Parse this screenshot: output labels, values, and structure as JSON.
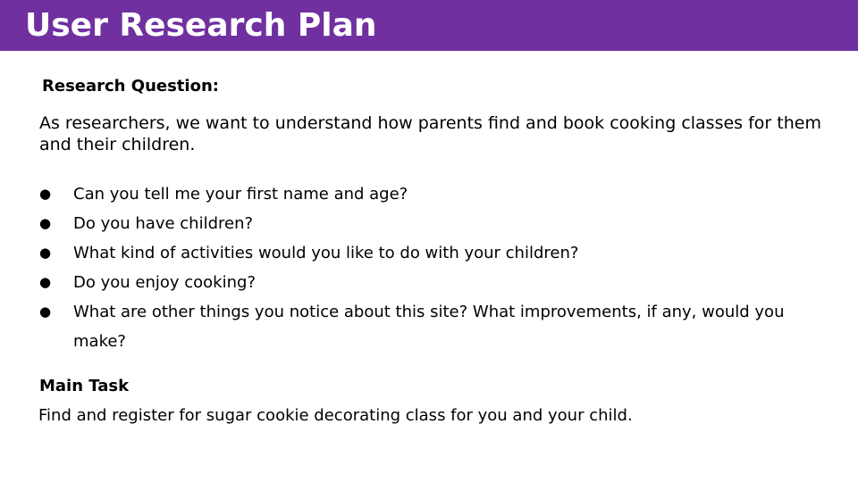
{
  "header": {
    "title": "User Research Plan",
    "background_color": "#7030a0",
    "text_color": "#ffffff"
  },
  "research_question": {
    "heading": "Research Question:",
    "text": "As researchers, we want to understand how parents find and book cooking classes for them and their children."
  },
  "questions": [
    "Can you tell me your first name and age?",
    "Do you have children?",
    "What kind of activities would you like to do with your children?",
    "Do you enjoy cooking?",
    "What are other things you notice about this site? What improvements, if any, would you make?"
  ],
  "main_task": {
    "heading": "Main Task",
    "text": "Find and register for sugar cookie decorating class for you and your child."
  }
}
